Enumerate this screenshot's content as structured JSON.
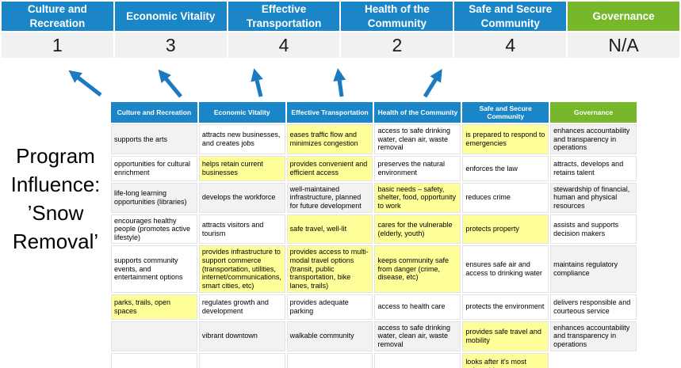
{
  "title": {
    "text": "Program Influence: ’Snow Removal’"
  },
  "summary": {
    "headers": [
      "Culture and Recreation",
      "Economic Vitality",
      "Effective Transportation",
      "Health of the Community",
      "Safe and Secure Community",
      "Governance"
    ],
    "header_colors": [
      "blue",
      "blue",
      "blue",
      "blue",
      "blue",
      "green"
    ],
    "values": [
      "1",
      "3",
      "4",
      "2",
      "4",
      "N/A"
    ]
  },
  "arrows": {
    "icon": "up-arrow",
    "count": 5,
    "color": "#1b7ac0"
  },
  "matrix": {
    "headers": [
      {
        "label": "Culture and Recreation",
        "color": "blue"
      },
      {
        "label": "Economic Vitality",
        "color": "blue"
      },
      {
        "label": "Effective Transportation",
        "color": "blue"
      },
      {
        "label": "Health of the Community",
        "color": "blue"
      },
      {
        "label": "Safe and Secure Community",
        "color": "blue"
      },
      {
        "label": "Governance",
        "color": "green"
      }
    ],
    "rows": [
      [
        {
          "text": "supports the arts",
          "bg": "gray"
        },
        {
          "text": "attracts new businesses, and creates jobs",
          "bg": "white"
        },
        {
          "text": "eases traffic flow and minimizes congestion",
          "bg": "yellow"
        },
        {
          "text": "access to safe drinking water, clean air, waste removal",
          "bg": "white"
        },
        {
          "text": "is prepared to respond to emergencies",
          "bg": "yellow"
        },
        {
          "text": "enhances accountability and transparency in operations",
          "bg": "gray"
        }
      ],
      [
        {
          "text": "opportunities for cultural enrichment",
          "bg": "white"
        },
        {
          "text": "helps retain current businesses",
          "bg": "yellow"
        },
        {
          "text": "provides convenient and efficient access",
          "bg": "yellow"
        },
        {
          "text": "preserves the natural environment",
          "bg": "white"
        },
        {
          "text": "enforces the law",
          "bg": "white"
        },
        {
          "text": "attracts, develops and retains talent",
          "bg": "white"
        }
      ],
      [
        {
          "text": "life-long learning opportunities (libraries)",
          "bg": "gray"
        },
        {
          "text": "develops the workforce",
          "bg": "gray"
        },
        {
          "text": "well-maintained infrastructure, planned for future development",
          "bg": "gray"
        },
        {
          "text": "basic needs – safety, shelter, food, opportunity to work",
          "bg": "yellow"
        },
        {
          "text": "reduces crime",
          "bg": "white"
        },
        {
          "text": "stewardship of financial, human and physical resources",
          "bg": "gray"
        }
      ],
      [
        {
          "text": "encourages healthy people (promotes active lifestyle)",
          "bg": "white"
        },
        {
          "text": "attracts visitors and tourism",
          "bg": "white"
        },
        {
          "text": "safe travel, well-lit",
          "bg": "yellow"
        },
        {
          "text": "cares for the vulnerable (elderly, youth)",
          "bg": "yellow"
        },
        {
          "text": "protects property",
          "bg": "yellow"
        },
        {
          "text": "assists and supports decision makers",
          "bg": "white"
        }
      ],
      [
        {
          "text": "supports community events, and entertainment options",
          "bg": "white"
        },
        {
          "text": "provides infrastructure to support commerce (transportation, utilities, internet/communications, smart cities, etc)",
          "bg": "yellow"
        },
        {
          "text": "provides access to multi-modal travel options (transit, public transportation, bike lanes, trails)",
          "bg": "yellow"
        },
        {
          "text": "keeps community safe from danger (crime, disease, etc)",
          "bg": "yellow"
        },
        {
          "text": "ensures safe air and access to drinking water",
          "bg": "white"
        },
        {
          "text": "maintains regulatory compliance",
          "bg": "gray"
        }
      ],
      [
        {
          "text": "parks, trails, open spaces",
          "bg": "yellow"
        },
        {
          "text": "regulates growth and development",
          "bg": "white"
        },
        {
          "text": "provides adequate parking",
          "bg": "white"
        },
        {
          "text": "access to health care",
          "bg": "white"
        },
        {
          "text": "protects the environment",
          "bg": "white"
        },
        {
          "text": "delivers responsible and courteous service",
          "bg": "white"
        }
      ],
      [
        {
          "text": "",
          "bg": "gray"
        },
        {
          "text": "vibrant downtown",
          "bg": "gray"
        },
        {
          "text": "walkable community",
          "bg": "gray"
        },
        {
          "text": "access to safe drinking water, clean air, waste removal",
          "bg": "gray"
        },
        {
          "text": "provides safe travel and mobility",
          "bg": "yellow"
        },
        {
          "text": "enhances accountability and transparency in operations",
          "bg": "gray"
        }
      ],
      [
        {
          "text": "",
          "bg": "white"
        },
        {
          "text": "",
          "bg": "white"
        },
        {
          "text": "",
          "bg": "white"
        },
        {
          "text": "",
          "bg": "white"
        },
        {
          "text": "looks after it's most vulnerable",
          "bg": "yellow"
        },
        {
          "text": "",
          "bg": "none"
        }
      ]
    ]
  },
  "colors": {
    "header_blue": "#1a86c8",
    "header_green": "#76b82a",
    "highlight_yellow": "#ffff99",
    "row_gray": "#f2f2f2",
    "values_row_gray": "#f1f1f1",
    "arrow_blue": "#1b7ac0"
  }
}
